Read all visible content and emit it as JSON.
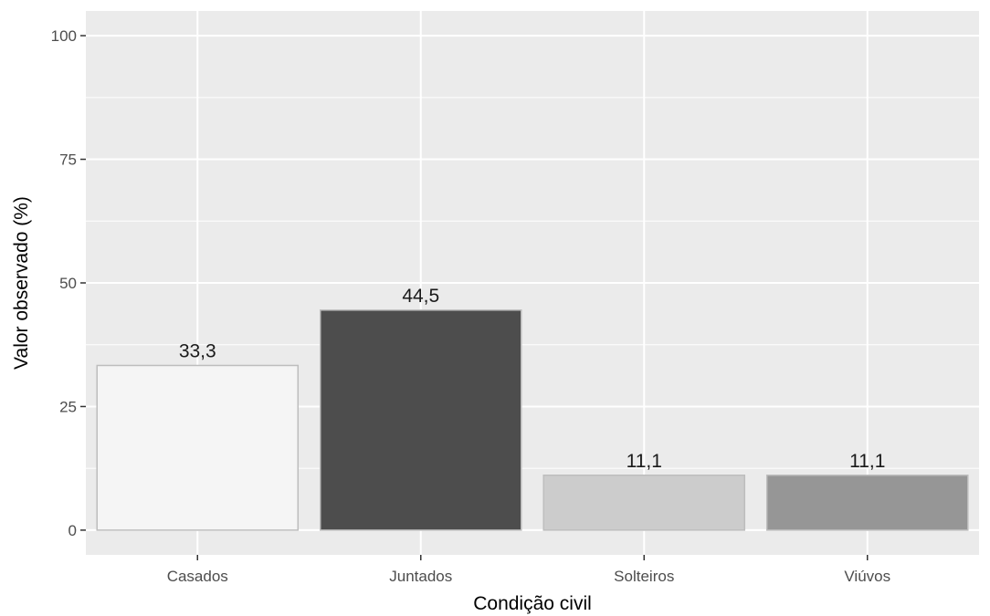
{
  "chart_data": {
    "type": "bar",
    "categories": [
      "Casados",
      "Juntados",
      "Solteiros",
      "Viúvos"
    ],
    "values": [
      33.3,
      44.5,
      11.1,
      11.1
    ],
    "value_labels": [
      "33,3",
      "44,5",
      "11,1",
      "11,1"
    ],
    "bar_colors": [
      "#F5F5F5",
      "#4D4D4D",
      "#CCCCCC",
      "#969696"
    ],
    "bar_outline_color": "#BDBDBD",
    "xlabel": "Condição civil",
    "ylabel": "Valor observado (%)",
    "ylim": [
      -5,
      105
    ],
    "yticks": [
      0,
      25,
      50,
      75,
      100
    ],
    "ytick_labels": [
      "0",
      "25",
      "50",
      "75",
      "100"
    ],
    "grid": true,
    "legend": "none",
    "panel_background": "#EBEBEB",
    "grid_color": "#FFFFFF"
  }
}
